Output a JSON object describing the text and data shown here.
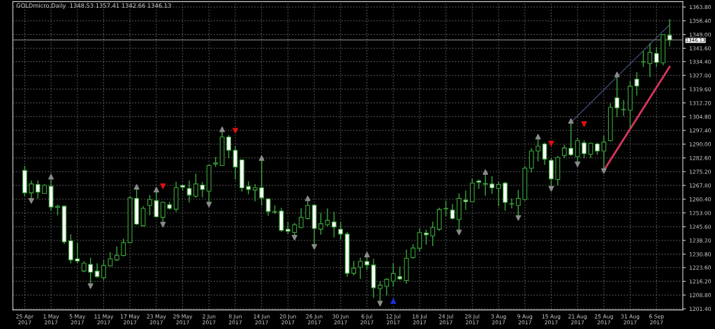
{
  "chart_data": {
    "type": "candlestick",
    "title": "GOLDmicro,Daily  1348.53 1357.41 1342.66 1346.13",
    "categories": [
      "25 Apr 2017",
      null,
      null,
      null,
      "1 May 2017",
      null,
      null,
      null,
      "5 May 2017",
      null,
      null,
      null,
      "11 May 2017",
      null,
      null,
      null,
      "17 May 2017",
      null,
      null,
      null,
      "23 May 2017",
      null,
      null,
      null,
      "29 May 2017",
      null,
      null,
      null,
      "2 Jun 2017",
      null,
      null,
      null,
      "8 Jun 2017",
      null,
      null,
      null,
      "14 Jun 2017",
      null,
      null,
      null,
      "20 Jun 2017",
      null,
      null,
      null,
      "26 Jun 2017",
      null,
      null,
      null,
      "30 Jun 2017",
      null,
      null,
      null,
      "6 Jul 2017",
      null,
      null,
      null,
      "12 Jul 2017",
      null,
      null,
      null,
      "18 Jul 2017",
      null,
      null,
      null,
      "24 Jul 2017",
      null,
      null,
      null,
      "28 Jul 2017",
      null,
      null,
      null,
      "3 Aug 2017",
      null,
      null,
      null,
      "9 Aug 2017",
      null,
      null,
      null,
      "15 Aug 2017",
      null,
      null,
      null,
      "21 Aug 2017",
      null,
      null,
      null,
      "25 Aug 2017",
      null,
      null,
      null,
      "31 Aug 2017",
      null,
      null,
      null,
      "6 Sep 2017",
      null,
      null
    ],
    "color": "#3aa63a",
    "ohlc": [
      [
        1275.9,
        1278.3,
        1262.0,
        1263.8
      ],
      [
        1263.8,
        1270.4,
        1260.5,
        1268.6
      ],
      [
        1268.3,
        1270.4,
        1260.8,
        1264.2
      ],
      [
        1263.5,
        1268.5,
        1263.3,
        1267.9
      ],
      [
        1267.4,
        1271.6,
        1254.2,
        1256.2
      ],
      [
        1256.0,
        1257.4,
        1251.8,
        1256.6
      ],
      [
        1256.6,
        1257.0,
        1236.2,
        1237.4
      ],
      [
        1238.0,
        1241.5,
        1225.9,
        1227.7
      ],
      [
        1228.3,
        1236.8,
        1225.9,
        1227.1
      ],
      [
        1221.7,
        1227.1,
        1221.1,
        1225.9
      ],
      [
        1225.3,
        1228.9,
        1214.5,
        1221.1
      ],
      [
        1221.7,
        1225.9,
        1218.1,
        1218.7
      ],
      [
        1218.1,
        1227.7,
        1216.9,
        1224.7
      ],
      [
        1224.5,
        1231.9,
        1224.1,
        1228.3
      ],
      [
        1227.7,
        1235.0,
        1227.1,
        1230.1
      ],
      [
        1230.1,
        1239.1,
        1229.5,
        1237.0
      ],
      [
        1237.0,
        1262.0,
        1236.8,
        1261.1
      ],
      [
        1260.8,
        1266.2,
        1246.4,
        1247.0
      ],
      [
        1246.1,
        1256.6,
        1245.8,
        1255.4
      ],
      [
        1257.0,
        1262.6,
        1251.8,
        1260.2
      ],
      [
        1259.6,
        1264.6,
        1250.6,
        1250.9
      ],
      [
        1250.6,
        1259.0,
        1247.6,
        1258.7
      ],
      [
        1257.4,
        1259.0,
        1254.8,
        1255.4
      ],
      [
        1255.0,
        1269.8,
        1253.6,
        1266.6
      ],
      [
        1267.8,
        1267.8,
        1265.0,
        1266.8
      ],
      [
        1266.2,
        1270.4,
        1258.7,
        1262.6
      ],
      [
        1262.0,
        1274.1,
        1261.1,
        1268.6
      ],
      [
        1268.0,
        1269.8,
        1261.4,
        1265.6
      ],
      [
        1264.7,
        1279.0,
        1258.4,
        1278.5
      ],
      [
        1279.4,
        1283.1,
        1277.7,
        1279.9
      ],
      [
        1278.5,
        1297.2,
        1278.3,
        1293.9
      ],
      [
        1293.9,
        1294.9,
        1282.5,
        1286.7
      ],
      [
        1286.7,
        1289.1,
        1271.0,
        1277.7
      ],
      [
        1281.6,
        1281.6,
        1264.4,
        1266.5
      ],
      [
        1267.3,
        1270.1,
        1263.0,
        1265.6
      ],
      [
        1265.3,
        1268.6,
        1259.3,
        1266.6
      ],
      [
        1266.6,
        1281.9,
        1257.0,
        1261.1
      ],
      [
        1260.6,
        1260.8,
        1251.4,
        1253.8
      ],
      [
        1253.6,
        1257.0,
        1252.4,
        1253.5
      ],
      [
        1254.0,
        1255.8,
        1242.8,
        1243.6
      ],
      [
        1244.2,
        1248.2,
        1241.6,
        1243.1
      ],
      [
        1242.5,
        1247.6,
        1240.6,
        1246.6
      ],
      [
        1245.2,
        1255.4,
        1244.6,
        1250.6
      ],
      [
        1250.0,
        1259.9,
        1249.4,
        1257.0
      ],
      [
        1257.2,
        1257.8,
        1235.6,
        1244.6
      ],
      [
        1244.2,
        1253.0,
        1241.3,
        1247.2
      ],
      [
        1246.7,
        1255.4,
        1245.8,
        1249.0
      ],
      [
        1248.2,
        1253.6,
        1239.8,
        1245.4
      ],
      [
        1244.2,
        1248.2,
        1238.9,
        1241.6
      ],
      [
        1241.6,
        1242.8,
        1218.7,
        1220.5
      ],
      [
        1220.5,
        1227.1,
        1219.3,
        1223.3
      ],
      [
        1223.8,
        1228.9,
        1217.5,
        1226.9
      ],
      [
        1226.9,
        1229.8,
        1222.3,
        1225.0
      ],
      [
        1225.0,
        1228.3,
        1207.3,
        1212.7
      ],
      [
        1212.3,
        1216.3,
        1205.0,
        1214.1
      ],
      [
        1213.5,
        1217.8,
        1208.5,
        1217.3
      ],
      [
        1216.3,
        1225.9,
        1213.3,
        1220.4
      ],
      [
        1218.7,
        1224.1,
        1216.9,
        1217.5
      ],
      [
        1216.6,
        1233.2,
        1214.9,
        1228.6
      ],
      [
        1229.0,
        1236.2,
        1228.3,
        1234.1
      ],
      [
        1234.0,
        1244.6,
        1232.2,
        1242.4
      ],
      [
        1242.2,
        1244.0,
        1235.9,
        1241.2
      ],
      [
        1240.6,
        1248.3,
        1235.2,
        1245.2
      ],
      [
        1244.2,
        1255.8,
        1243.4,
        1254.8
      ],
      [
        1255.2,
        1259.6,
        1251.2,
        1255.4
      ],
      [
        1254.6,
        1257.8,
        1249.4,
        1250.0
      ],
      [
        1249.4,
        1263.5,
        1243.4,
        1260.8
      ],
      [
        1259.9,
        1265.0,
        1254.6,
        1259.1
      ],
      [
        1259.0,
        1271.6,
        1258.7,
        1269.0
      ],
      [
        1270.2,
        1271.0,
        1265.9,
        1269.5
      ],
      [
        1268.5,
        1274.1,
        1262.3,
        1268.8
      ],
      [
        1268.6,
        1272.8,
        1263.2,
        1266.5
      ],
      [
        1266.2,
        1269.8,
        1256.6,
        1268.3
      ],
      [
        1269.0,
        1269.8,
        1254.2,
        1258.7
      ],
      [
        1257.8,
        1260.8,
        1255.4,
        1257.9
      ],
      [
        1257.0,
        1265.4,
        1251.2,
        1260.8
      ],
      [
        1260.2,
        1278.3,
        1259.6,
        1277.1
      ],
      [
        1277.1,
        1287.9,
        1274.7,
        1286.3
      ],
      [
        1286.3,
        1293.1,
        1280.7,
        1288.9
      ],
      [
        1290.1,
        1290.9,
        1278.9,
        1281.9
      ],
      [
        1281.3,
        1282.5,
        1266.8,
        1271.3
      ],
      [
        1271.0,
        1283.7,
        1267.8,
        1282.8
      ],
      [
        1283.9,
        1289.7,
        1282.5,
        1287.9
      ],
      [
        1287.8,
        1301.7,
        1283.7,
        1284.3
      ],
      [
        1283.3,
        1293.3,
        1280.1,
        1291.9
      ],
      [
        1290.7,
        1292.1,
        1282.5,
        1284.9
      ],
      [
        1284.6,
        1290.9,
        1282.5,
        1290.5
      ],
      [
        1290.1,
        1290.9,
        1284.3,
        1286.3
      ],
      [
        1286.3,
        1294.5,
        1275.9,
        1291.1
      ],
      [
        1291.9,
        1312.0,
        1291.5,
        1309.8
      ],
      [
        1315.0,
        1326.7,
        1304.7,
        1309.5
      ],
      [
        1308.5,
        1313.8,
        1305.1,
        1308.7
      ],
      [
        1308.3,
        1324.0,
        1298.7,
        1321.2
      ],
      [
        1325.0,
        1328.8,
        1316.2,
        1321.3
      ],
      [
        1334.2,
        1340.0,
        1331.6,
        1334.4
      ],
      [
        1333.4,
        1344.4,
        1326.0,
        1339.4
      ],
      [
        1338.8,
        1342.3,
        1331.6,
        1334.0
      ],
      [
        1333.8,
        1349.2,
        1332.4,
        1348.9
      ],
      [
        1348.53,
        1357.41,
        1342.66,
        1346.13
      ]
    ],
    "series": [
      {
        "type": "line",
        "color": "#d6365a",
        "values": [
          null,
          null,
          null,
          null,
          null,
          null,
          null,
          null,
          null,
          null,
          null,
          null,
          null,
          null,
          null,
          null,
          null,
          null,
          null,
          null,
          null,
          null,
          null,
          null,
          null,
          null,
          null,
          null,
          null,
          null,
          null,
          null,
          null,
          null,
          null,
          null,
          null,
          null,
          null,
          null,
          null,
          null,
          null,
          null,
          null,
          null,
          null,
          null,
          null,
          null,
          null,
          null,
          null,
          null,
          null,
          null,
          null,
          null,
          null,
          null,
          null,
          null,
          null,
          null,
          null,
          null,
          null,
          null,
          null,
          null,
          null,
          null,
          null,
          null,
          null,
          null,
          null,
          null,
          null,
          null,
          null,
          null,
          null,
          null,
          null,
          null,
          null,
          null,
          1275.9,
          null,
          null,
          null,
          null,
          null,
          null,
          null,
          null,
          null,
          1331.7
        ]
      },
      {
        "type": "line",
        "color": "#4a5a8a",
        "values": [
          null,
          null,
          null,
          null,
          null,
          null,
          null,
          null,
          null,
          null,
          null,
          null,
          null,
          null,
          null,
          null,
          null,
          null,
          null,
          null,
          null,
          null,
          null,
          null,
          null,
          null,
          null,
          null,
          null,
          null,
          null,
          null,
          null,
          null,
          null,
          null,
          null,
          null,
          null,
          null,
          null,
          null,
          null,
          null,
          null,
          null,
          null,
          null,
          null,
          null,
          null,
          null,
          null,
          null,
          null,
          null,
          null,
          null,
          null,
          null,
          null,
          null,
          null,
          null,
          null,
          null,
          null,
          null,
          null,
          null,
          null,
          null,
          null,
          null,
          null,
          null,
          null,
          null,
          null,
          null,
          null,
          null,
          null,
          1301.7,
          null,
          null,
          null,
          null,
          null,
          null,
          null,
          null,
          null,
          null,
          null,
          null,
          null,
          null,
          1354.3
        ]
      },
      {
        "type": "scatter",
        "marker": "triangle-down",
        "color": "#e01010",
        "values": [
          null,
          null,
          null,
          null,
          null,
          null,
          null,
          null,
          null,
          null,
          null,
          null,
          null,
          null,
          null,
          null,
          null,
          null,
          null,
          null,
          null,
          1267.4,
          null,
          null,
          null,
          null,
          null,
          null,
          null,
          null,
          null,
          null,
          1297.3,
          null,
          null,
          null,
          null,
          null,
          null,
          null,
          null,
          null,
          null,
          null,
          null,
          null,
          null,
          null,
          null,
          null,
          null,
          null,
          null,
          null,
          null,
          null,
          null,
          null,
          null,
          null,
          null,
          null,
          null,
          null,
          null,
          null,
          null,
          null,
          null,
          null,
          null,
          null,
          null,
          null,
          null,
          null,
          null,
          null,
          null,
          null,
          1290.3,
          null,
          null,
          null,
          null,
          1300.8,
          null,
          null,
          null,
          null,
          null,
          null,
          null,
          null,
          null,
          null,
          null,
          null,
          null
        ]
      },
      {
        "type": "scatter",
        "marker": "triangle",
        "color": "#1a2ee0",
        "values": [
          null,
          null,
          null,
          null,
          null,
          null,
          null,
          null,
          null,
          null,
          null,
          null,
          null,
          null,
          null,
          null,
          null,
          null,
          null,
          null,
          null,
          null,
          null,
          null,
          null,
          null,
          null,
          null,
          null,
          null,
          null,
          null,
          null,
          null,
          null,
          null,
          null,
          null,
          null,
          null,
          null,
          null,
          null,
          null,
          null,
          null,
          null,
          null,
          null,
          null,
          null,
          null,
          null,
          null,
          null,
          null,
          1205.5,
          null,
          null,
          null,
          null,
          null,
          null,
          null,
          null,
          null,
          null,
          null,
          null,
          null,
          null,
          null,
          null,
          null,
          null,
          null,
          null,
          null,
          null,
          null,
          null,
          null,
          null,
          null,
          null,
          null,
          null,
          null,
          null,
          null,
          null,
          null,
          null,
          null,
          null,
          null,
          null,
          null,
          null
        ]
      },
      {
        "type": "scatter",
        "marker": "triangle",
        "color": "#8a8a8a",
        "values": [
          null,
          null,
          null,
          null,
          1272.5,
          null,
          null,
          null,
          null,
          null,
          null,
          null,
          null,
          null,
          null,
          null,
          null,
          1267.0,
          null,
          null,
          1265.5,
          null,
          null,
          null,
          null,
          null,
          null,
          null,
          null,
          null,
          1298.0,
          null,
          null,
          null,
          null,
          null,
          1282.5,
          null,
          null,
          null,
          null,
          null,
          null,
          1260.8,
          null,
          null,
          null,
          null,
          null,
          null,
          null,
          null,
          1230.6,
          null,
          null,
          null,
          null,
          null,
          null,
          null,
          null,
          null,
          null,
          null,
          null,
          null,
          null,
          null,
          null,
          null,
          1275.0,
          null,
          null,
          null,
          null,
          null,
          null,
          null,
          1294.0,
          null,
          null,
          null,
          null,
          1302.5,
          null,
          null,
          null,
          null,
          null,
          null,
          1327.5,
          null,
          null,
          null,
          null,
          null,
          null,
          null,
          null
        ]
      },
      {
        "type": "scatter",
        "marker": "triangle-down",
        "color": "#8a8a8a",
        "values": [
          null,
          1259.5,
          null,
          null,
          null,
          null,
          null,
          null,
          null,
          null,
          1213.6,
          null,
          null,
          null,
          null,
          null,
          null,
          null,
          null,
          null,
          null,
          1246.7,
          null,
          null,
          null,
          null,
          null,
          null,
          1257.5,
          null,
          null,
          null,
          null,
          null,
          null,
          null,
          null,
          null,
          null,
          null,
          null,
          1239.7,
          null,
          null,
          1234.7,
          null,
          null,
          null,
          null,
          null,
          null,
          null,
          null,
          null,
          1204.2,
          null,
          null,
          null,
          null,
          null,
          null,
          null,
          null,
          null,
          null,
          null,
          1242.5,
          null,
          null,
          null,
          null,
          null,
          null,
          null,
          null,
          1250.3,
          null,
          null,
          null,
          null,
          1266.0,
          null,
          null,
          null,
          1279.2,
          null,
          null,
          null,
          1275.5,
          null,
          null,
          null,
          null,
          null,
          null,
          null,
          null,
          null,
          null
        ]
      }
    ],
    "ref_lines": [
      {
        "axis": "y",
        "value": 1346.13,
        "label": "1346.13",
        "color": "#9a9a9a"
      }
    ],
    "ylim": [
      1200.8,
      1366.7
    ],
    "yticks": [
      {
        "value": 1201.4,
        "label": "1201.40"
      },
      {
        "value": 1208.8,
        "label": "1208.80"
      },
      {
        "value": 1216.2,
        "label": "1216.20"
      },
      {
        "value": 1223.6,
        "label": "1223.60"
      },
      {
        "value": 1230.8,
        "label": "1230.80"
      },
      {
        "value": 1238.2,
        "label": "1238.20"
      },
      {
        "value": 1245.6,
        "label": "1245.60"
      },
      {
        "value": 1253.0,
        "label": "1253.00"
      },
      {
        "value": 1260.4,
        "label": "1260.40"
      },
      {
        "value": 1267.8,
        "label": "1267.80"
      },
      {
        "value": 1275.2,
        "label": "1275.20"
      },
      {
        "value": 1282.6,
        "label": "1282.60"
      },
      {
        "value": 1290.0,
        "label": "1290.00"
      },
      {
        "value": 1297.4,
        "label": "1297.40"
      },
      {
        "value": 1304.8,
        "label": "1304.80"
      },
      {
        "value": 1312.2,
        "label": "1312.20"
      },
      {
        "value": 1319.6,
        "label": "1319.60"
      },
      {
        "value": 1327.0,
        "label": "1327.00"
      },
      {
        "value": 1334.4,
        "label": "1334.40"
      },
      {
        "value": 1341.6,
        "label": "1341.60"
      },
      {
        "value": 1349.0,
        "label": "1349.00"
      },
      {
        "value": 1356.4,
        "label": "1356.40"
      },
      {
        "value": 1363.8,
        "label": "1363.80"
      }
    ],
    "grid": true
  }
}
